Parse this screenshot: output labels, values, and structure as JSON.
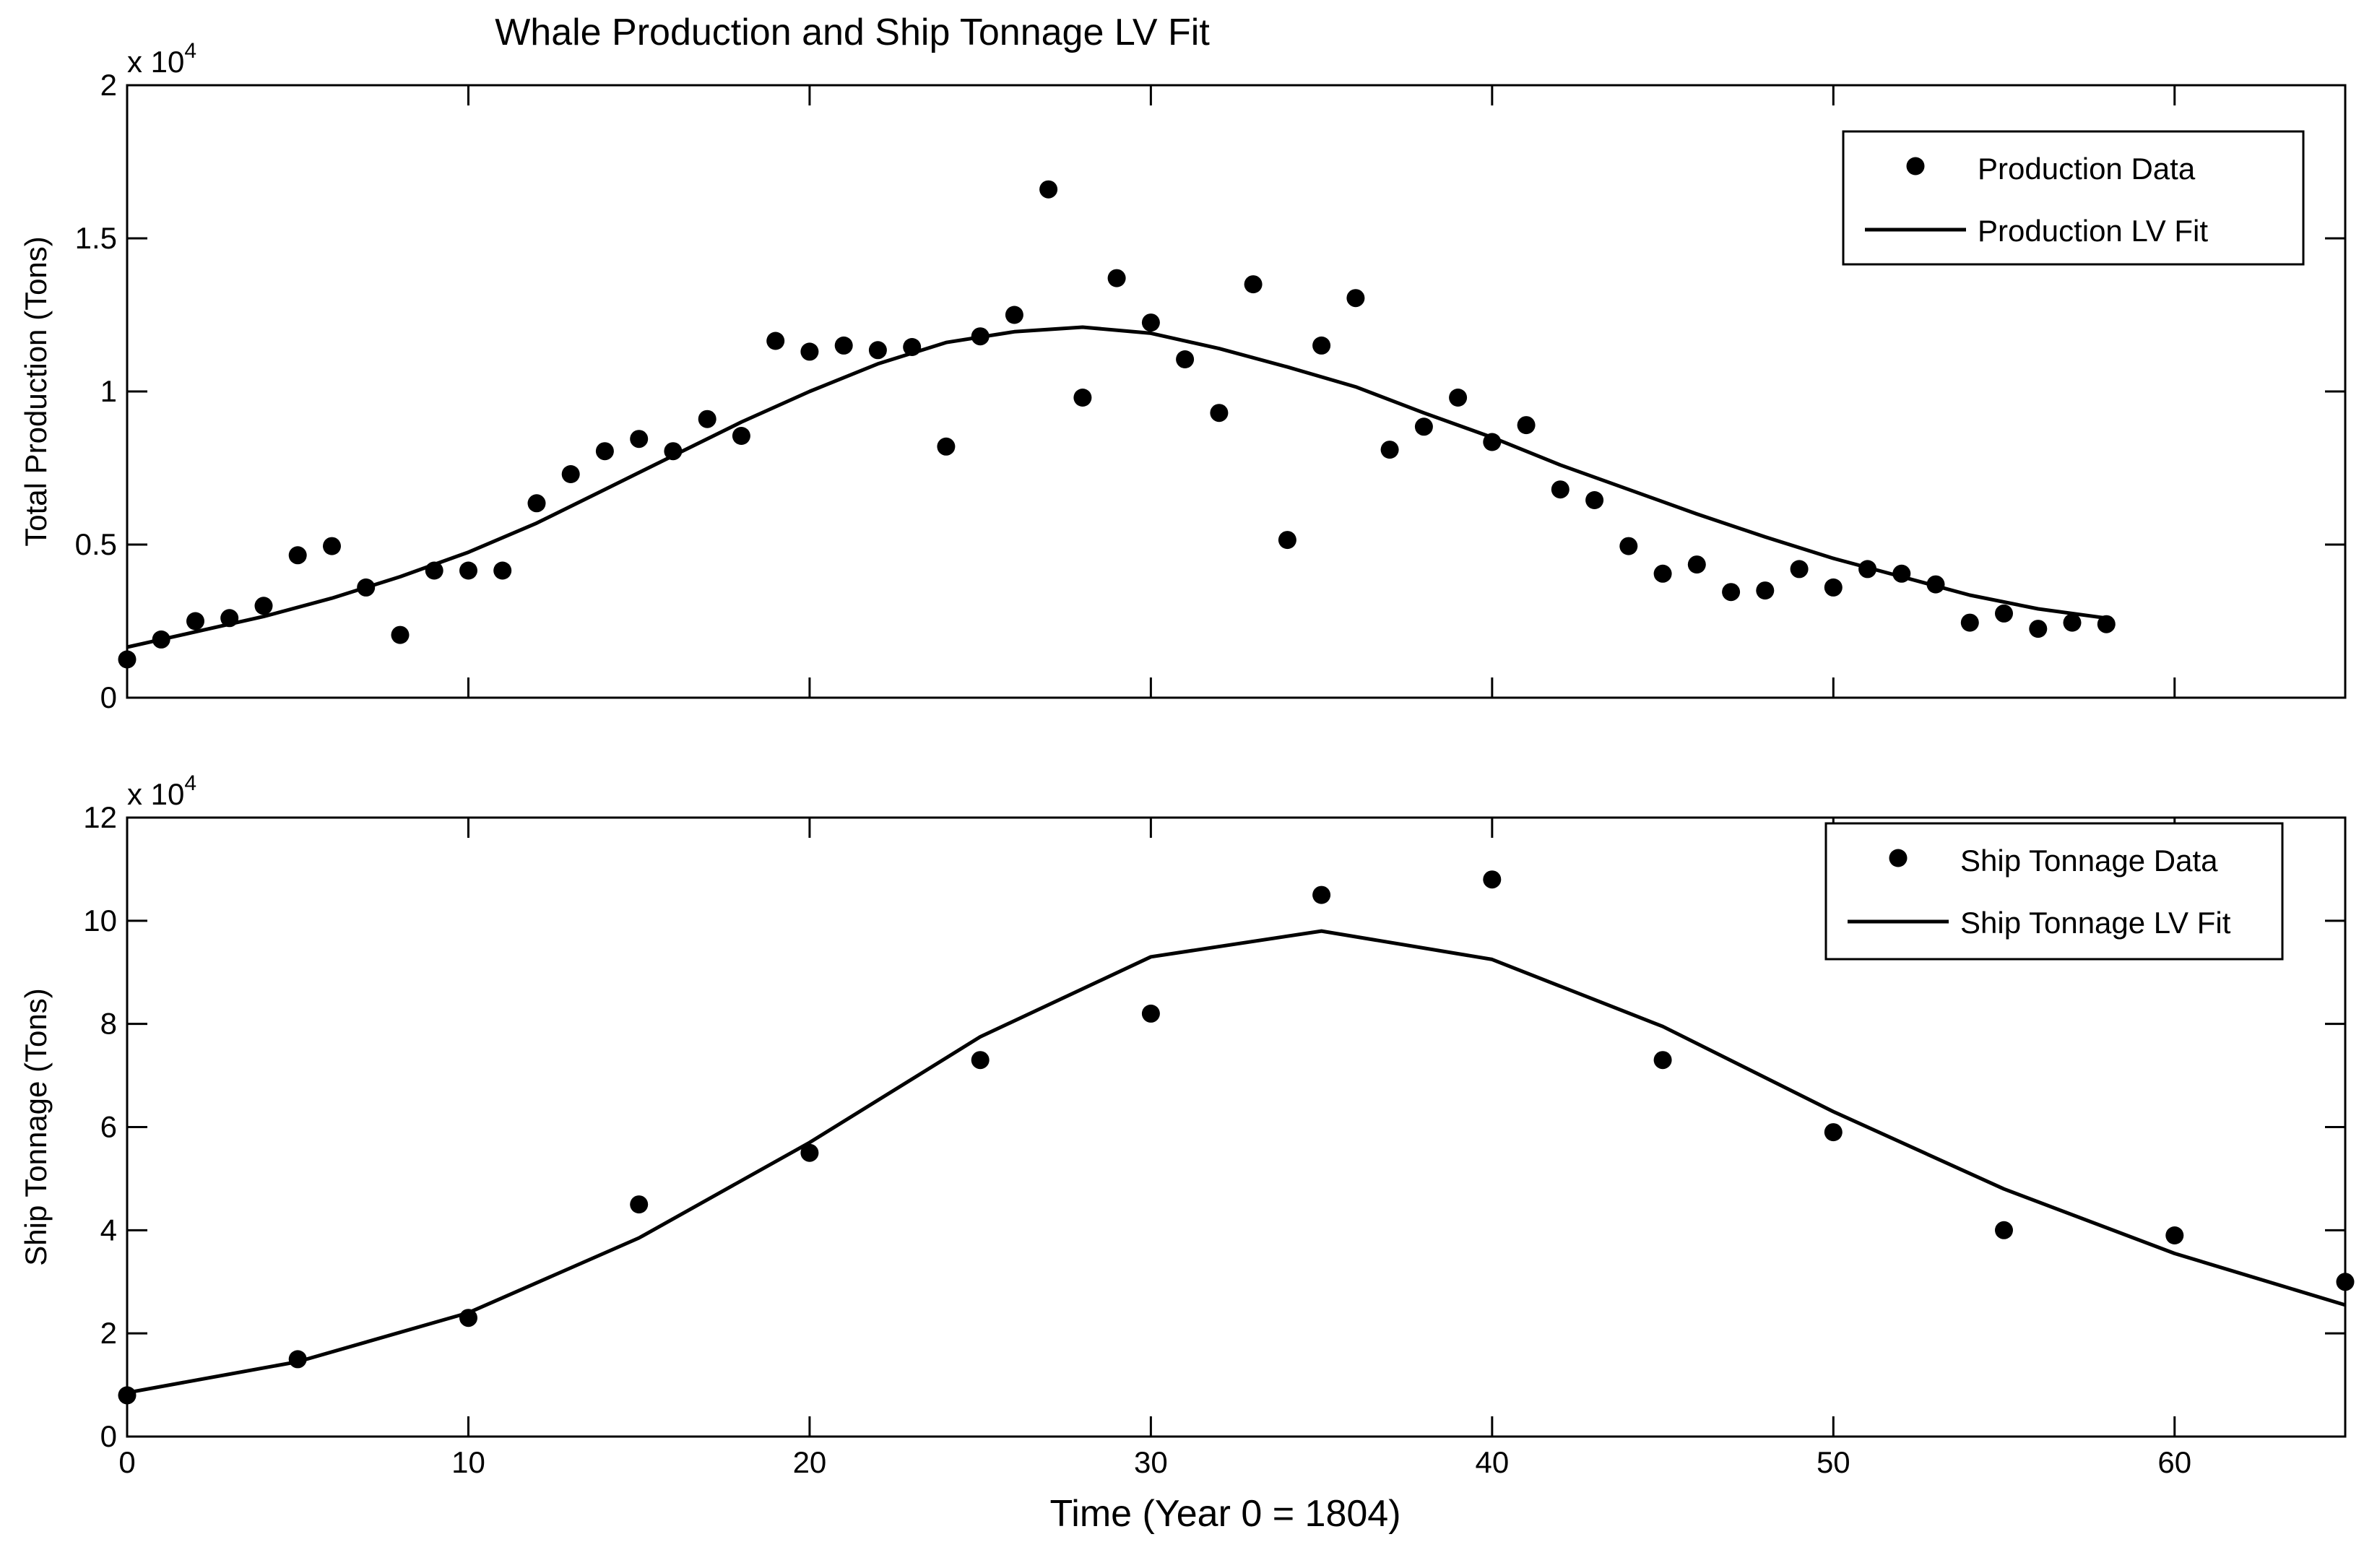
{
  "figure": {
    "title": "Whale Production and Ship Tonnage LV Fit"
  },
  "chart_data": [
    {
      "type": "scatter",
      "id": "production",
      "title": "Whale Production and Ship Tonnage LV Fit",
      "xlabel": "",
      "ylabel": "Total Production (Tons)",
      "exponent_label": {
        "base": "x 10",
        "power": "4"
      },
      "xlim": [
        0,
        65
      ],
      "ylim": [
        0,
        20000
      ],
      "yscale": 10000,
      "xticks": [
        0,
        10,
        20,
        30,
        40,
        50,
        60
      ],
      "xtick_labels": [
        "",
        "",
        "",
        "",
        "",
        "",
        ""
      ],
      "yticks": [
        0,
        5000,
        10000,
        15000,
        20000
      ],
      "ytick_labels": [
        "0",
        "0.5",
        "1",
        "1.5",
        "2"
      ],
      "grid": false,
      "legend_position": "top-right",
      "series": [
        {
          "name": "Production Data",
          "kind": "markers",
          "x": [
            0,
            1,
            2,
            3,
            4,
            5,
            6,
            7,
            8,
            9,
            10,
            11,
            12,
            13,
            14,
            15,
            16,
            17,
            18,
            19,
            20,
            21,
            22,
            23,
            24,
            25,
            26,
            27,
            28,
            29,
            30,
            31,
            32,
            33,
            34,
            35,
            36,
            37,
            38,
            39,
            40,
            41,
            42,
            43,
            44,
            45,
            46,
            47,
            48,
            49,
            50,
            51,
            52,
            53,
            54,
            55,
            56,
            57,
            58
          ],
          "y": [
            1250,
            1900,
            2500,
            2600,
            3000,
            4650,
            4950,
            3600,
            2050,
            4150,
            4150,
            4150,
            6350,
            7300,
            8050,
            8450,
            8050,
            9100,
            8550,
            11650,
            11300,
            11500,
            11350,
            11450,
            8200,
            11800,
            12500,
            16600,
            9800,
            13700,
            12250,
            11050,
            9300,
            13500,
            5150,
            11500,
            13050,
            8100,
            8850,
            9800,
            8350,
            8900,
            6800,
            6450,
            4950,
            4050,
            4350,
            3450,
            3500,
            4200,
            3600,
            4200,
            4050,
            3700,
            2450,
            2750,
            2250,
            2450,
            2400
          ]
        },
        {
          "name": "Production LV Fit",
          "kind": "line",
          "x": [
            0,
            2,
            4,
            6,
            8,
            10,
            12,
            14,
            16,
            18,
            20,
            22,
            24,
            26,
            28,
            30,
            32,
            34,
            36,
            38,
            40,
            42,
            44,
            46,
            48,
            50,
            52,
            54,
            56,
            58
          ],
          "y": [
            1650,
            2150,
            2650,
            3250,
            3950,
            4750,
            5700,
            6800,
            7900,
            9000,
            10000,
            10900,
            11600,
            11950,
            12100,
            11900,
            11400,
            10800,
            10150,
            9300,
            8500,
            7600,
            6800,
            6000,
            5250,
            4550,
            3950,
            3350,
            2900,
            2600
          ]
        }
      ]
    },
    {
      "type": "scatter",
      "id": "tonnage",
      "title": "",
      "xlabel": "Time (Year 0 = 1804)",
      "ylabel": "Ship Tonnage (Tons)",
      "exponent_label": {
        "base": "x 10",
        "power": "4"
      },
      "xlim": [
        0,
        65
      ],
      "ylim": [
        0,
        120000
      ],
      "yscale": 10000,
      "xticks": [
        0,
        10,
        20,
        30,
        40,
        50,
        60
      ],
      "xtick_labels": [
        "0",
        "10",
        "20",
        "30",
        "40",
        "50",
        "60"
      ],
      "yticks": [
        0,
        20000,
        40000,
        60000,
        80000,
        100000,
        120000
      ],
      "ytick_labels": [
        "0",
        "2",
        "4",
        "6",
        "8",
        "10",
        "12"
      ],
      "grid": false,
      "legend_position": "top-right",
      "series": [
        {
          "name": "Ship Tonnage Data",
          "kind": "markers",
          "x": [
            0,
            5,
            10,
            15,
            20,
            25,
            30,
            35,
            40,
            45,
            50,
            55,
            60,
            65
          ],
          "y": [
            8000,
            15000,
            23000,
            45000,
            55000,
            73000,
            82000,
            105000,
            108000,
            73000,
            59000,
            40000,
            39000,
            30000
          ]
        },
        {
          "name": "Ship Tonnage LV Fit",
          "kind": "line",
          "x": [
            0,
            5,
            10,
            15,
            20,
            25,
            30,
            35,
            40,
            45,
            50,
            55,
            60,
            65
          ],
          "y": [
            8500,
            14500,
            24000,
            38500,
            57000,
            77500,
            93000,
            98000,
            92500,
            79500,
            63000,
            48000,
            35500,
            25500
          ]
        }
      ]
    }
  ]
}
